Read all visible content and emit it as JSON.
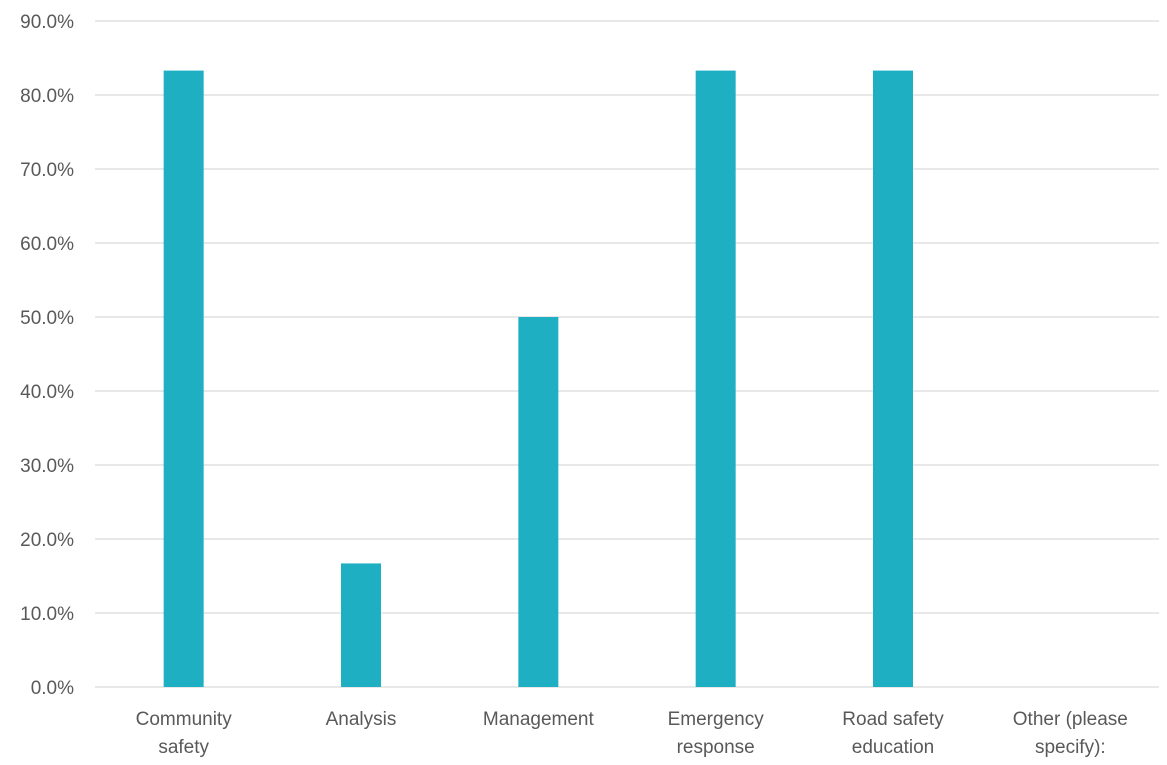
{
  "chart_data": {
    "type": "bar",
    "categories": [
      [
        "Community",
        "safety"
      ],
      [
        "Analysis"
      ],
      [
        "Management"
      ],
      [
        "Emergency",
        "response"
      ],
      [
        "Road safety",
        "education"
      ],
      [
        "Other (please",
        "specify):"
      ]
    ],
    "values": [
      83.3,
      16.7,
      50.0,
      83.3,
      83.3,
      0
    ],
    "ylim": [
      0,
      90
    ],
    "yticks": [
      "0.0%",
      "10.0%",
      "20.0%",
      "30.0%",
      "40.0%",
      "50.0%",
      "60.0%",
      "70.0%",
      "80.0%",
      "90.0%"
    ],
    "grid": true,
    "legend": "none",
    "colors": {
      "bar": "#1FAFC3",
      "grid": "#D9D9D9",
      "text": "#595959"
    }
  }
}
